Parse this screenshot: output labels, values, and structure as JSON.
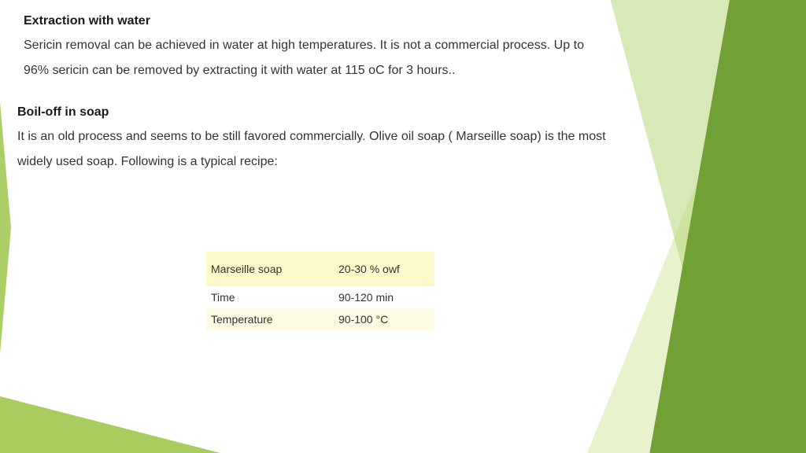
{
  "section1": {
    "heading": "Extraction with water",
    "body": "Sericin removal can be achieved in water at high temperatures. It is not a commercial process. Up to 96% sericin can be removed by extracting it with water at 115 oC for 3 hours.."
  },
  "section2": {
    "heading": "Boil-off in soap",
    "body": "It is an old process and seems to be still favored commercially. Olive oil soap ( Marseille soap) is the most widely used soap. Following is a typical recipe:"
  },
  "recipe": {
    "rows": [
      {
        "label": "Marseille soap",
        "value": "20-30 % owf"
      },
      {
        "label": "Time",
        "value": "90-120 min"
      },
      {
        "label": "Temperature",
        "value": "90-100 °C"
      }
    ],
    "row_styles": [
      "highlight-strong",
      "plain",
      "highlight-light"
    ],
    "highlight_strong_color": "#fcfacb",
    "highlight_light_color": "#fdfbe1",
    "text_color": "#333333",
    "fontsize": 14
  },
  "theme": {
    "body_text_color": "#333333",
    "heading_text_color": "#1a1a1a",
    "body_fontsize": 16,
    "heading_fontsize": 16,
    "accent_colors": [
      "#6c9c2f",
      "#9ec64b",
      "#b6d77a",
      "#d5e8a3"
    ],
    "background_color": "#ffffff"
  }
}
